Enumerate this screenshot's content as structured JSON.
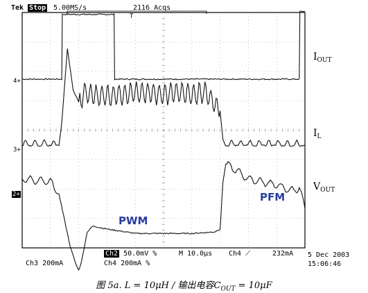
{
  "header": {
    "brand": "Tek",
    "status": "Stop",
    "sample_rate": "5.00MS/s",
    "acquisitions": "2116 Acqs",
    "trigger_marker": "T"
  },
  "channel_labels": {
    "iout": {
      "main": "I",
      "sub": "OUT"
    },
    "il": {
      "main": "I",
      "sub": "L"
    },
    "vout": {
      "main": "V",
      "sub": "OUT"
    }
  },
  "annotations": {
    "pwm": "PWM",
    "pfm": "PFM"
  },
  "ground_markers": {
    "ch4": "4+",
    "ch3": "3+",
    "ch2": "2+"
  },
  "readouts": {
    "ch2_badge": "Ch2",
    "ch2_scale": "50.0mV",
    "bw1": "%",
    "timebase": "M 10.0μs",
    "trigger_source": "Ch4",
    "trigger_slope": "⟋",
    "trigger_level": "232mA",
    "ch3_label": "Ch3",
    "ch3_scale": "200mA",
    "ch4_label": "Ch4",
    "ch4_scale": "200mA",
    "bw2": "%",
    "date": "5 Dec 2003",
    "time": "15:06:46"
  },
  "caption": {
    "prefix": "图 5a. L = 10μH / 输出电容C",
    "sub": "OUT",
    "suffix": " = 10μF"
  },
  "chart_data": {
    "type": "line",
    "x_unit": "μs",
    "x_range": [
      -50,
      50
    ],
    "time_per_div_us": 10,
    "series": [
      {
        "name": "IOUT",
        "channel": "Ch4",
        "scale": "200mA/div",
        "x": [
          -50,
          -36,
          -35.8,
          -17.5,
          -17.3,
          48,
          48.2,
          50
        ],
        "y": [
          0.0,
          0.0,
          2.2,
          2.2,
          0.0,
          0.0,
          2.3,
          2.3
        ]
      },
      {
        "name": "IL",
        "channel": "Ch3",
        "scale": "200mA/div",
        "x": [
          -50,
          -37,
          -36,
          -34,
          -32,
          -30,
          -28,
          -25,
          -20,
          -15,
          -10,
          -5,
          0,
          5,
          10,
          15,
          20,
          21,
          22,
          25,
          30,
          35,
          40,
          45,
          50
        ],
        "y": [
          0.1,
          0.1,
          0.9,
          3.4,
          2.0,
          1.6,
          1.9,
          1.8,
          1.8,
          1.85,
          1.9,
          1.9,
          1.85,
          1.9,
          1.85,
          1.9,
          1.3,
          0.3,
          0.1,
          0.1,
          0.1,
          0.1,
          0.1,
          0.1,
          0.1
        ]
      },
      {
        "name": "VOUT",
        "channel": "Ch2",
        "scale": "50.0mV/div",
        "x": [
          -50,
          -45,
          -40,
          -37,
          -35,
          -33,
          -31,
          -30,
          -29,
          -27,
          -25,
          -20,
          -10,
          0,
          10,
          18,
          20,
          21,
          22,
          24,
          30,
          40,
          45,
          48,
          50
        ],
        "y": [
          0.5,
          0.45,
          0.4,
          0.0,
          -0.9,
          -1.8,
          -2.4,
          -2.6,
          -2.3,
          -1.3,
          -1.1,
          -1.2,
          -1.35,
          -1.35,
          -1.35,
          -1.3,
          -1.2,
          0.4,
          1.0,
          0.9,
          0.5,
          0.3,
          0.1,
          0.2,
          -0.5
        ]
      }
    ]
  }
}
